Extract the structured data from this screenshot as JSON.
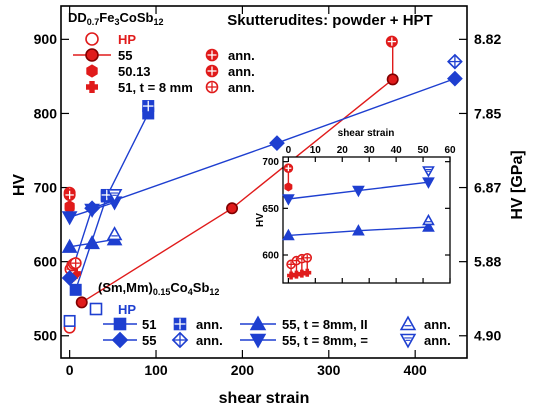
{
  "chart_data": [
    {
      "type": "line",
      "title": "Skutterudites: powder + HPT",
      "xlabel": "shear strain",
      "ylabel": "HV",
      "y2label": "HV [GPa]",
      "xlim": [
        -10,
        460
      ],
      "ylim": [
        470,
        945
      ],
      "xticks": [
        0,
        100,
        200,
        300,
        400
      ],
      "yticks": [
        500,
        600,
        700,
        800,
        900
      ],
      "y2ticks": [
        {
          "at": 500,
          "label": "4.90"
        },
        {
          "at": 600,
          "label": "5.88"
        },
        {
          "at": 700,
          "label": "6.87"
        },
        {
          "at": 800,
          "label": "7.85"
        },
        {
          "at": 900,
          "label": "8.82"
        }
      ],
      "grid": false,
      "legend_groups": [
        {
          "title": "DD",
          "title_sub": "0.7",
          "title_rest": "Fe",
          "title_sub2": "3",
          "title_rest2": "CoSb",
          "title_sub3": "12",
          "color": "#e01b1b",
          "entries": [
            "HP",
            "55",
            "50.13",
            "51, t = 8 mm"
          ],
          "ann": [
            "ann.",
            "ann.",
            "ann."
          ]
        },
        {
          "title": "(Sm,Mm)",
          "title_sub": "0.15",
          "title_rest": "Co",
          "title_sub2": "4",
          "title_rest2": "Sb",
          "title_sub3": "12",
          "color": "#1e3fd0",
          "entries": [
            "HP",
            "51",
            "55",
            "55, t = 8mm, II",
            "55, t = 8mm, ="
          ],
          "ann": [
            "ann.",
            "ann.",
            "ann.",
            "ann."
          ]
        }
      ],
      "series": [
        {
          "color": "#e01b1b",
          "marker": "circle-open",
          "points": [
            [
              0,
              511
            ]
          ]
        },
        {
          "color": "#e01b1b",
          "marker": "circle",
          "line": true,
          "points": [
            [
              14,
              545
            ],
            [
              188,
              672
            ],
            [
              374,
              846
            ]
          ]
        },
        {
          "color": "#e01b1b",
          "marker": "hexagon",
          "points": [
            [
              0,
              675
            ],
            [
              0,
              673
            ]
          ]
        },
        {
          "color": "#e01b1b",
          "marker": "plus-filled",
          "points": [
            [
              1,
              578
            ],
            [
              3,
              580
            ],
            [
              5,
              582
            ],
            [
              7,
              584
            ]
          ]
        },
        {
          "color": "#e01b1b",
          "marker": "circle-plus",
          "points": [
            [
              0,
              693
            ],
            [
              0,
              690
            ],
            [
              373,
              897
            ]
          ]
        },
        {
          "color": "#e01b1b",
          "marker": "circle-plus-open",
          "points": [
            [
              1,
              590
            ],
            [
              3,
              595
            ],
            [
              5,
              597
            ],
            [
              7,
              598
            ]
          ]
        },
        {
          "color": "#1e3fd0",
          "marker": "square-open",
          "points": [
            [
              0,
              520
            ]
          ]
        },
        {
          "color": "#1e3fd0",
          "marker": "square",
          "line": true,
          "points": [
            [
              7,
              562
            ],
            [
              43,
              688
            ],
            [
              91,
              800
            ]
          ]
        },
        {
          "color": "#1e3fd0",
          "marker": "square-plus",
          "points": [
            [
              91,
              810
            ],
            [
              43,
              690
            ]
          ]
        },
        {
          "color": "#1e3fd0",
          "marker": "diamond",
          "line": true,
          "points": [
            [
              0,
              578
            ],
            [
              26,
              672
            ],
            [
              240,
              760
            ],
            [
              446,
              847
            ]
          ]
        },
        {
          "color": "#1e3fd0",
          "marker": "diamond-plus",
          "points": [
            [
              446,
              870
            ]
          ]
        },
        {
          "color": "#1e3fd0",
          "marker": "tri-up",
          "line": true,
          "points": [
            [
              0,
              620
            ],
            [
              26,
              625
            ],
            [
              52,
              630
            ]
          ]
        },
        {
          "color": "#1e3fd0",
          "marker": "tri-up-open",
          "points": [
            [
              52,
              637
            ]
          ]
        },
        {
          "color": "#1e3fd0",
          "marker": "tri-down",
          "line": true,
          "points": [
            [
              0,
              660
            ],
            [
              26,
              670
            ],
            [
              52,
              680
            ]
          ]
        },
        {
          "color": "#1e3fd0",
          "marker": "tri-down-open",
          "points": [
            [
              52,
              690
            ]
          ]
        }
      ],
      "errorbars": [
        {
          "color": "#e01b1b",
          "x": 374,
          "y1": 846,
          "y2": 897
        },
        {
          "color": "#e01b1b",
          "x": 0,
          "y1": 676,
          "y2": 693
        },
        {
          "color": "#e01b1b",
          "x": 1,
          "y1": 578,
          "y2": 590
        },
        {
          "color": "#e01b1b",
          "x": 3,
          "y1": 580,
          "y2": 595
        },
        {
          "color": "#e01b1b",
          "x": 5,
          "y1": 582,
          "y2": 597
        },
        {
          "color": "#e01b1b",
          "x": 7,
          "y1": 584,
          "y2": 598
        }
      ]
    },
    {
      "type": "line",
      "title": "",
      "xlabel": "shear strain",
      "ylabel": "HV",
      "xlim": [
        -2,
        60
      ],
      "ylim": [
        570,
        705
      ],
      "xticks": [
        0,
        10,
        20,
        30,
        40,
        50,
        60
      ],
      "yticks": [
        600,
        650,
        700
      ],
      "grid": false,
      "series": [
        {
          "color": "#e01b1b",
          "marker": "circle-plus",
          "points": [
            [
              0,
              693
            ]
          ]
        },
        {
          "color": "#e01b1b",
          "marker": "hexagon",
          "points": [
            [
              0,
              673
            ]
          ]
        },
        {
          "color": "#e01b1b",
          "marker": "plus-filled",
          "points": [
            [
              1,
              578
            ],
            [
              3,
              579
            ],
            [
              5,
              580
            ],
            [
              7,
              581
            ]
          ]
        },
        {
          "color": "#e01b1b",
          "marker": "circle-plus-open",
          "points": [
            [
              1,
              590
            ],
            [
              3,
              594
            ],
            [
              5,
              596
            ],
            [
              7,
              597
            ]
          ]
        },
        {
          "color": "#1e3fd0",
          "marker": "tri-down",
          "line": true,
          "points": [
            [
              0,
              660
            ],
            [
              26,
              669
            ],
            [
              52,
              678
            ]
          ]
        },
        {
          "color": "#1e3fd0",
          "marker": "tri-down-open",
          "points": [
            [
              52,
              690
            ]
          ]
        },
        {
          "color": "#1e3fd0",
          "marker": "tri-up",
          "line": true,
          "points": [
            [
              0,
              621
            ],
            [
              26,
              626
            ],
            [
              52,
              630
            ]
          ]
        },
        {
          "color": "#1e3fd0",
          "marker": "tri-up-open",
          "points": [
            [
              52,
              637
            ]
          ]
        }
      ],
      "errorbars": [
        {
          "color": "#e01b1b",
          "x": 0,
          "y1": 673,
          "y2": 693
        },
        {
          "color": "#e01b1b",
          "x": 1,
          "y1": 578,
          "y2": 590
        },
        {
          "color": "#e01b1b",
          "x": 3,
          "y1": 579,
          "y2": 594
        },
        {
          "color": "#e01b1b",
          "x": 5,
          "y1": 580,
          "y2": 596
        },
        {
          "color": "#e01b1b",
          "x": 7,
          "y1": 581,
          "y2": 597
        }
      ]
    }
  ]
}
